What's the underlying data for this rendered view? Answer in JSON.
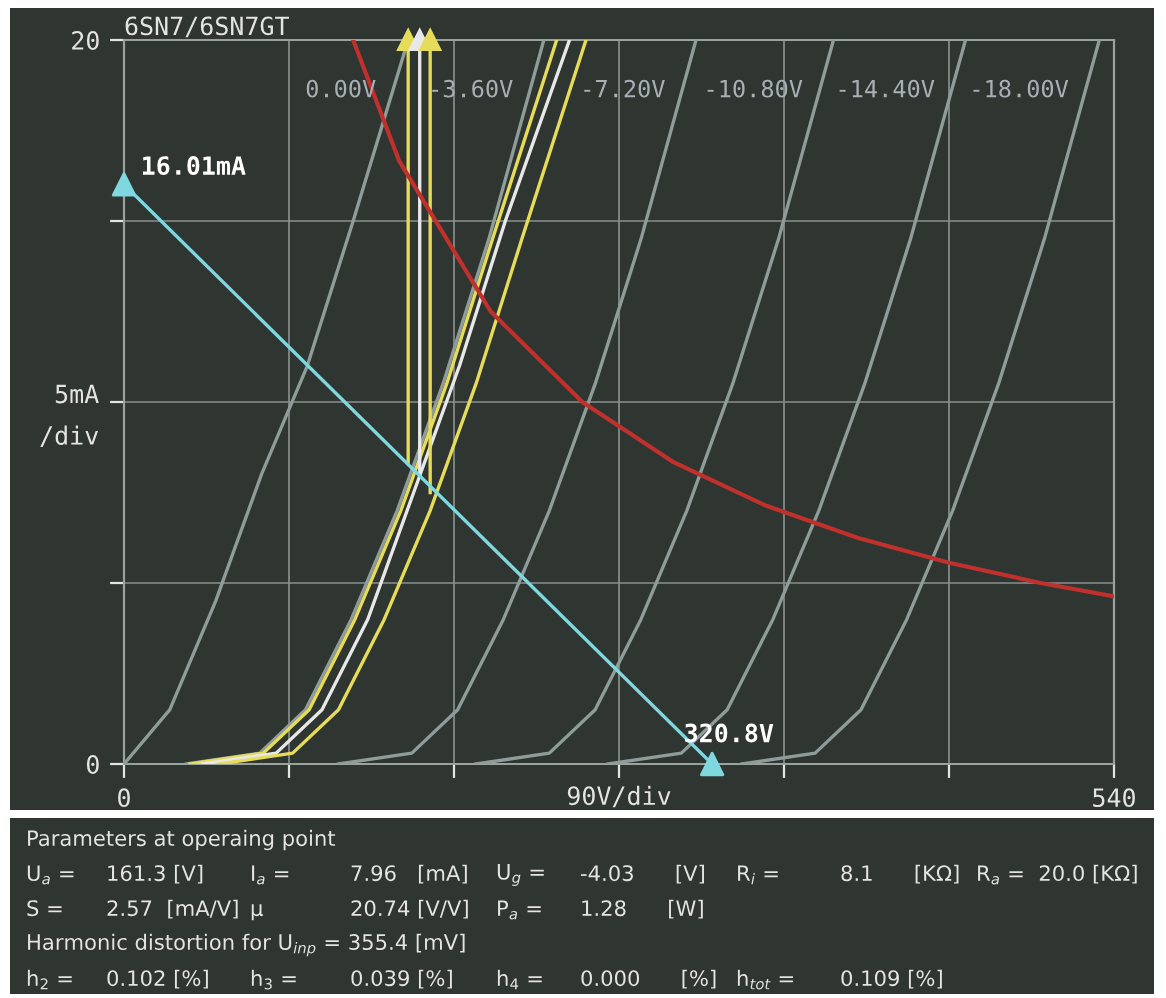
{
  "chart_data": {
    "type": "line",
    "title": "6SN7/6SN7GT",
    "xlabel": "90V/div",
    "ylabel": "5mA\n/div",
    "xlim": [
      0,
      540
    ],
    "ylim": [
      0,
      20
    ],
    "xticks": [
      0,
      {
        "value": 90,
        "label": null
      },
      {
        "value": 180,
        "label": null
      },
      {
        "value": 270,
        "label": null
      },
      {
        "value": 360,
        "label": null
      },
      {
        "value": 450,
        "label": null
      },
      540
    ],
    "yticks": [
      0,
      {
        "value": 5,
        "label": null
      },
      {
        "value": 10,
        "label": null
      },
      {
        "value": 15,
        "label": null
      },
      20
    ],
    "grid": true,
    "marker": "none",
    "line_style": "solid",
    "series": [
      {
        "name": "0.00V",
        "color": "#8e9c9a",
        "x": [
          0,
          25,
          50,
          75,
          100,
          125,
          155
        ],
        "values": [
          0,
          1.5,
          4.5,
          8,
          11,
          15,
          20
        ]
      },
      {
        "name": "-3.60V",
        "color": "#8e9c9a",
        "x": [
          34,
          74,
          99,
          124,
          149,
          174,
          199,
          229
        ],
        "values": [
          0,
          0.3,
          1.5,
          4,
          7,
          10.5,
          14.5,
          20
        ]
      },
      {
        "name": "-7.20V",
        "color": "#8e9c9a",
        "x": [
          117,
          157,
          182,
          207,
          232,
          257,
          282,
          312
        ],
        "values": [
          0,
          0.3,
          1.5,
          4,
          7,
          10.5,
          14.5,
          20
        ]
      },
      {
        "name": "-10.80V",
        "color": "#8e9c9a",
        "x": [
          192,
          232,
          257,
          282,
          307,
          332,
          357,
          387
        ],
        "values": [
          0,
          0.3,
          1.5,
          4,
          7,
          10.5,
          14.5,
          20
        ]
      },
      {
        "name": "-14.40V",
        "color": "#8e9c9a",
        "x": [
          264,
          304,
          329,
          354,
          379,
          404,
          429,
          459
        ],
        "values": [
          0,
          0.3,
          1.5,
          4,
          7,
          10.5,
          14.5,
          20
        ]
      },
      {
        "name": "-18.00V",
        "color": "#8e9c9a",
        "x": [
          337,
          377,
          402,
          427,
          452,
          477,
          502,
          532
        ],
        "values": [
          0,
          0.3,
          1.5,
          4,
          7,
          10.5,
          14.5,
          20
        ]
      },
      {
        "color": "#e6dc5a",
        "x": [
          36,
          76,
          101,
          126,
          151,
          176,
          201,
          236
        ],
        "values": [
          0,
          0.3,
          1.5,
          4,
          7,
          10.5,
          14.5,
          20
        ]
      },
      {
        "color": "#e8e8e8",
        "x": [
          43,
          83,
          108,
          133,
          158,
          183,
          208,
          243
        ],
        "values": [
          0,
          0.3,
          1.5,
          4,
          7.5,
          11,
          15,
          20
        ]
      },
      {
        "color": "#e6dc5a",
        "x": [
          52,
          92,
          117,
          142,
          167,
          192,
          217,
          252
        ],
        "values": [
          0,
          0.3,
          1.5,
          4,
          7,
          10.5,
          14.5,
          20
        ]
      },
      {
        "color": "#e6dc5a",
        "marker": "triangle",
        "x": [
          155,
          155
        ],
        "values": [
          20,
          8.3
        ]
      },
      {
        "color": "#e8e8e8",
        "marker": "triangle",
        "x": [
          161.3,
          161.3
        ],
        "values": [
          20,
          7.96
        ]
      },
      {
        "color": "#e6dc5a",
        "marker": "triangle",
        "x": [
          167,
          167
        ],
        "values": [
          20,
          7.5
        ]
      },
      {
        "color": "#c0302c",
        "x": [
          125,
          150,
          200,
          250,
          300,
          350,
          400,
          450,
          500,
          540
        ],
        "values": [
          20,
          16.67,
          12.5,
          10,
          8.33,
          7.14,
          6.25,
          5.56,
          5,
          4.63
        ]
      },
      {
        "color": "#7fd8e0",
        "x": [
          0,
          320.8
        ],
        "values": [
          16.01,
          0
        ]
      },
      {
        "type": "scatter",
        "marker": "triangle",
        "color": "#7fd8e0",
        "x": [
          0,
          320.8
        ],
        "values": [
          16.01,
          0
        ]
      }
    ],
    "annotations": [
      {
        "text": "16.01mA",
        "x": 0,
        "y": 16.01
      },
      {
        "text": "320.8V",
        "x": 320.8,
        "y": 0
      },
      "Parameters at operaing point",
      "U$_{a}$ =\t161.3 [V]\tI$_{a}$ =\t7.96   [mA]\tU$_{g}$ =\t-4.03      [V]\tR$_{i}$ =\t8.1      [KΩ]\tR$_{a}$ =  20.0 [KΩ]",
      "S =\t2.57  [mA/V]\tμ\t20.74 [V/V]\tP$_{a}$ =\t1.28      [W]",
      "Harmonic distortion for U$_{inp}$ = 355.4 [mV]",
      "h$_{2}$ =\t0.102 [%]\th$_{3}$ =\t0.039 [%]\th$_{4}$ =\t0.000      [%]\th$_{tot}$ =\t0.109 [%]"
    ]
  }
}
